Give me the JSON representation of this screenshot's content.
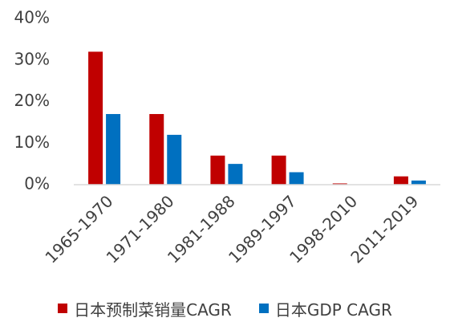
{
  "chart_data": {
    "type": "bar",
    "title": "",
    "xlabel": "",
    "ylabel": "",
    "categories": [
      "1965-1970",
      "1971-1980",
      "1981-1988",
      "1989-1997",
      "1998-2010",
      "2011-2019"
    ],
    "series": [
      {
        "name": "日本预制菜销量CAGR",
        "color": "#c00000",
        "values": [
          32,
          17,
          7,
          7,
          0.3,
          2
        ]
      },
      {
        "name": "日本GDP CAGR",
        "color": "#0070c0",
        "values": [
          17,
          12,
          5,
          3,
          0,
          1
        ]
      }
    ],
    "ylim": [
      0,
      40
    ],
    "y_ticks": [
      "0%",
      "10%",
      "20%",
      "30%",
      "40%"
    ],
    "grid": false,
    "legend": "bottom"
  }
}
